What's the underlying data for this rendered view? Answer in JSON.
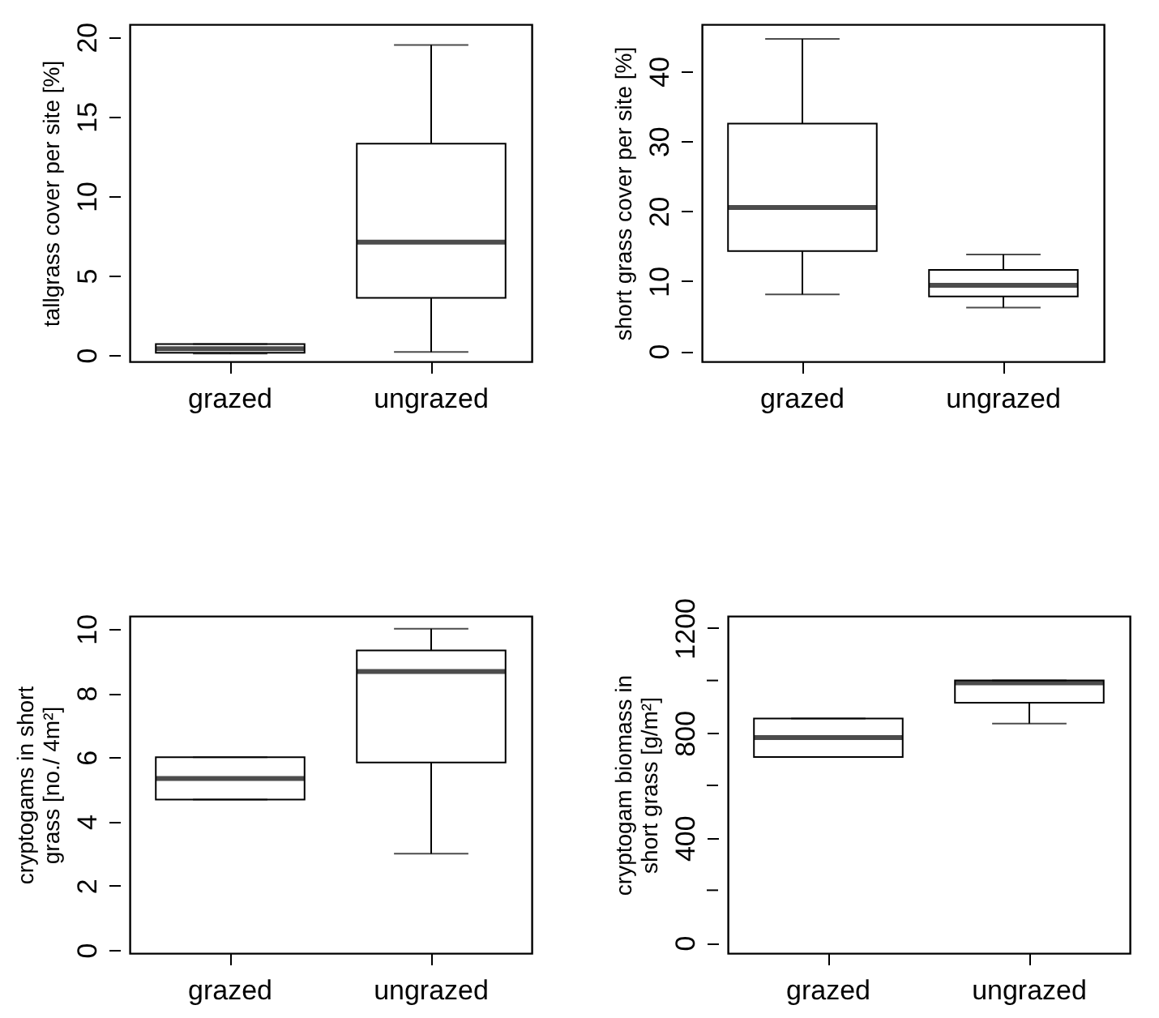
{
  "chart_data": [
    {
      "type": "box",
      "ylabel": "tallgrass cover per site [%]",
      "categories": [
        "grazed",
        "ungrazed"
      ],
      "ylim": [
        -0.4,
        20.8
      ],
      "yticks": [
        0,
        5,
        10,
        15,
        20
      ],
      "boxes": [
        {
          "low": 0.1,
          "q1": 0.15,
          "median": 0.4,
          "q3": 0.7,
          "high": 0.7
        },
        {
          "low": 0.2,
          "q1": 3.6,
          "median": 7.1,
          "q3": 13.3,
          "high": 19.5
        }
      ]
    },
    {
      "type": "box",
      "ylabel": "short grass cover per site [%]",
      "categories": [
        "grazed",
        "ungrazed"
      ],
      "ylim": [
        -1.5,
        46.7
      ],
      "yticks": [
        0,
        10,
        20,
        30,
        40
      ],
      "boxes": [
        {
          "low": 8.1,
          "q1": 14.3,
          "median": 20.5,
          "q3": 32.5,
          "high": 44.6
        },
        {
          "low": 6.2,
          "q1": 7.8,
          "median": 9.4,
          "q3": 11.6,
          "high": 13.8
        }
      ]
    },
    {
      "type": "box",
      "ylabel": "cryptogams in short\ngrass [no./ 4m²]",
      "categories": [
        "grazed",
        "ungrazed"
      ],
      "ylim": [
        -0.1,
        10.4
      ],
      "yticks": [
        0,
        2,
        4,
        6,
        8,
        10
      ],
      "boxes": [
        {
          "low": 4.68,
          "q1": 4.68,
          "median": 5.34,
          "q3": 6.0,
          "high": 6.0
        },
        {
          "low": 3.0,
          "q1": 5.84,
          "median": 8.67,
          "q3": 9.33,
          "high": 10.0
        }
      ]
    },
    {
      "type": "box",
      "ylabel": "cryptogam biomass in\nshort grass [g/m²]",
      "categories": [
        "grazed",
        "ungrazed"
      ],
      "ylim": [
        -40,
        1246
      ],
      "yticks": [
        0,
        {
          "value": 200,
          "label": null
        },
        400,
        {
          "value": 600,
          "label": null
        },
        800,
        {
          "value": 1000,
          "label": null
        },
        1200
      ],
      "boxes": [
        {
          "low": 708,
          "q1": 708,
          "median": 782,
          "q3": 855,
          "high": 855
        },
        {
          "low": 836,
          "q1": 915,
          "median": 991,
          "q3": 1000,
          "high": 1000
        }
      ]
    }
  ]
}
